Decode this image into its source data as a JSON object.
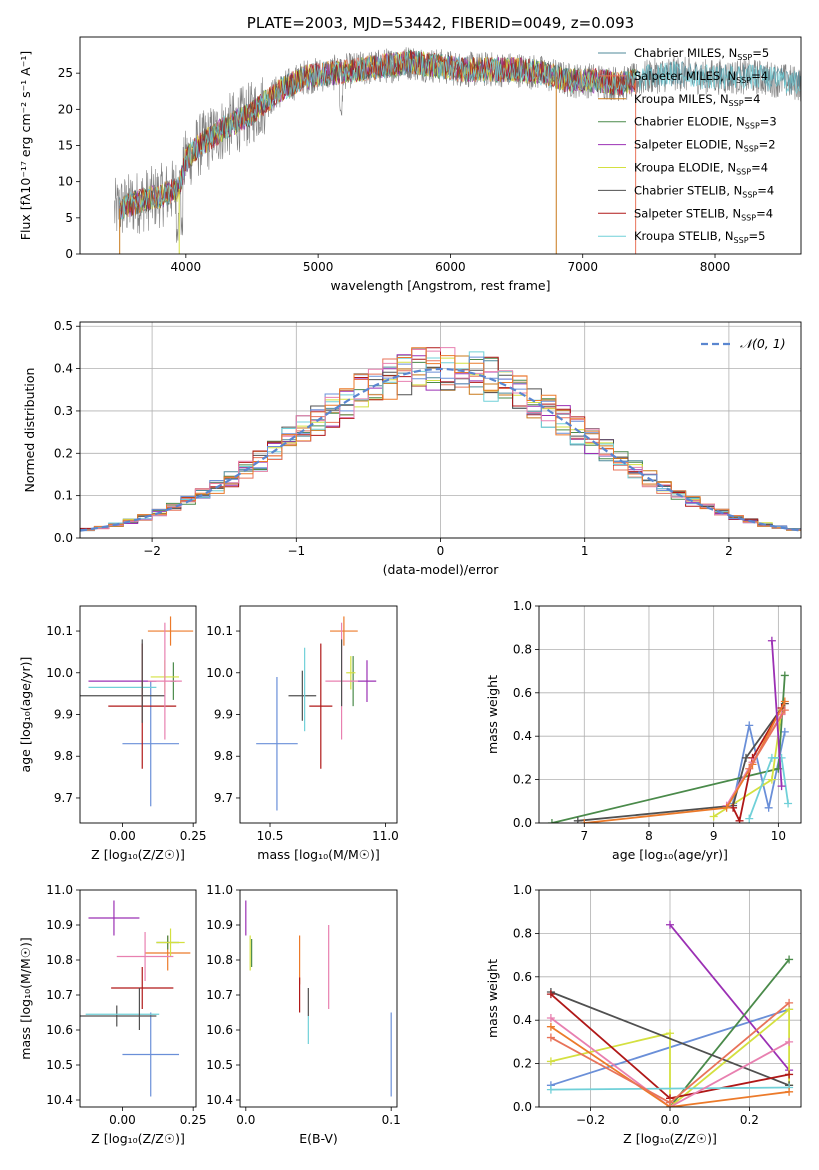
{
  "colors": {
    "Chabrier MILES": "#4f8a9a",
    "Salpeter MILES": "#e8735a",
    "Kroupa MILES": "#c8781a",
    "Chabrier ELODIE": "#4a8a4a",
    "Salpeter ELODIE": "#9b30b4",
    "Kroupa ELODIE": "#d4e040",
    "Chabrier STELIB": "#505050",
    "Salpeter STELIB": "#b01818",
    "Kroupa STELIB": "#70d0d8",
    "blue": "#6a8fd8",
    "pink": "#e880b0",
    "orange": "#ec7a2a"
  },
  "chart_data": [
    {
      "type": "line",
      "id": "spectrum",
      "title": "PLATE=2003, MJD=53442, FIBERID=0049, z=0.093",
      "xlabel": "wavelength [Angstrom, rest frame]",
      "ylabel": "Flux [fλ10⁻¹⁷ erg cm⁻² s⁻¹ A⁻¹]",
      "xlim": [
        3200,
        8650
      ],
      "ylim": [
        0,
        30
      ],
      "xticks": [
        4000,
        5000,
        6000,
        7000,
        8000
      ],
      "yticks": [
        0,
        5,
        10,
        15,
        20,
        25
      ],
      "legend_position": "upper-right",
      "continuum": {
        "x": [
          3460,
          3600,
          3800,
          3950,
          4000,
          4100,
          4300,
          4500,
          4700,
          4900,
          5100,
          5300,
          5500,
          5700,
          5900,
          6100,
          6300,
          6500,
          6700,
          6900,
          7100,
          7300,
          7500,
          7700,
          7900,
          8100,
          8300,
          8500,
          8650
        ],
        "y": [
          6,
          7,
          8,
          9,
          13,
          15,
          17.5,
          19.5,
          22.5,
          24.5,
          25,
          25.5,
          26,
          26.5,
          26,
          25.5,
          25.5,
          25.5,
          25,
          24,
          24,
          23.5,
          24.5,
          25,
          24.5,
          24.5,
          24.5,
          24,
          23.5
        ]
      },
      "legend": [
        {
          "label": "Chabrier MILES, N",
          "sub": "SSP",
          "suffix": "=5"
        },
        {
          "label": "Salpeter MILES, N",
          "sub": "SSP",
          "suffix": "=4"
        },
        {
          "label": "Kroupa MILES, N",
          "sub": "SSP",
          "suffix": "=4"
        },
        {
          "label": "Chabrier ELODIE, N",
          "sub": "SSP",
          "suffix": "=3"
        },
        {
          "label": "Salpeter ELODIE, N",
          "sub": "SSP",
          "suffix": "=2"
        },
        {
          "label": "Kroupa ELODIE, N",
          "sub": "SSP",
          "suffix": "=4"
        },
        {
          "label": "Chabrier STELIB, N",
          "sub": "SSP",
          "suffix": "=4"
        },
        {
          "label": "Salpeter STELIB, N",
          "sub": "SSP",
          "suffix": "=4"
        },
        {
          "label": "Kroupa STELIB, N",
          "sub": "SSP",
          "suffix": "=5"
        }
      ]
    },
    {
      "type": "histogram",
      "id": "residuals",
      "xlabel": "(data-model)/error",
      "ylabel": "Normed distribution",
      "xlim": [
        -2.5,
        2.5
      ],
      "ylim": [
        0,
        0.51
      ],
      "xticks": [
        -2,
        -1,
        0,
        1,
        2
      ],
      "yticks": [
        0.0,
        0.1,
        0.2,
        0.3,
        0.4,
        0.5
      ],
      "grid": true,
      "legend_label": "𝒩(0, 1)",
      "legend_position": "upper-right",
      "bin_width": 0.1
    },
    {
      "type": "errorbar",
      "id": "age-vs-Z",
      "xlabel": "Z [log₁₀(Z/Z☉)]",
      "ylabel": "age  [log₁₀(age/yr)]",
      "xlim": [
        -0.15,
        0.26
      ],
      "ylim": [
        9.64,
        10.16
      ],
      "xticks": [
        0.0,
        0.25
      ],
      "xtick_labels": [
        "0.00",
        "0.25"
      ],
      "yticks": [
        9.7,
        9.8,
        9.9,
        10.0,
        10.1
      ],
      "points": [
        {
          "c": "blue",
          "x": 0.1,
          "y": 9.83,
          "xe": 0.1,
          "ye": 0.15
        },
        {
          "c": "orange",
          "x": 0.17,
          "y": 10.1,
          "xe": 0.08,
          "ye": 0.035
        },
        {
          "c": "Chabrier ELODIE",
          "x": 0.18,
          "y": 9.98,
          "xe": 0.01,
          "ye": 0.045
        },
        {
          "c": "Salpeter ELODIE",
          "x": 0.0,
          "y": 9.98,
          "xe": 0.12,
          "ye": 0.0
        },
        {
          "c": "Kroupa ELODIE",
          "x": 0.15,
          "y": 9.99,
          "xe": 0.05,
          "ye": 0.04
        },
        {
          "c": "Chabrier STELIB",
          "x": 0.0,
          "y": 9.945,
          "xe": 0.15,
          "ye": 0.0
        },
        {
          "c": "Salpeter STELIB",
          "x": 0.07,
          "y": 9.92,
          "xe": 0.12,
          "ye": 0.15
        },
        {
          "c": "Kroupa STELIB",
          "x": 0.0,
          "y": 9.965,
          "xe": 0.12,
          "ye": 0.0
        },
        {
          "c": "pink",
          "x": 0.15,
          "y": 9.98,
          "xe": 0.06,
          "ye": 0.14
        },
        {
          "c": "Chabrier STELIB",
          "x": 0.07,
          "y": 9.98,
          "xe": 0.0,
          "ye": 0.1
        }
      ]
    },
    {
      "type": "errorbar",
      "id": "age-vs-mass",
      "xlabel": "mass [log₁₀(M/M☉)]",
      "ylabel": "",
      "xlim": [
        10.37,
        11.05
      ],
      "ylim": [
        9.64,
        10.16
      ],
      "xticks": [
        10.5,
        11.0
      ],
      "xtick_labels": [
        "10.5",
        "11.0"
      ],
      "yticks": [
        9.7,
        9.8,
        9.9,
        10.0,
        10.1
      ],
      "points": [
        {
          "c": "blue",
          "x": 10.53,
          "y": 9.83,
          "xe": 0.09,
          "ye": 0.16
        },
        {
          "c": "orange",
          "x": 10.82,
          "y": 10.1,
          "xe": 0.06,
          "ye": 0.035
        },
        {
          "c": "Chabrier ELODIE",
          "x": 10.86,
          "y": 9.98,
          "xe": 0.0,
          "ye": 0.06
        },
        {
          "c": "Salpeter ELODIE",
          "x": 10.92,
          "y": 9.98,
          "xe": 0.04,
          "ye": 0.05
        },
        {
          "c": "Kroupa ELODIE",
          "x": 10.85,
          "y": 10.0,
          "xe": 0.02,
          "ye": 0.04
        },
        {
          "c": "Chabrier STELIB",
          "x": 10.64,
          "y": 9.945,
          "xe": 0.06,
          "ye": 0.06
        },
        {
          "c": "Salpeter STELIB",
          "x": 10.72,
          "y": 9.92,
          "xe": 0.05,
          "ye": 0.15
        },
        {
          "c": "Kroupa STELIB",
          "x": 10.65,
          "y": 9.96,
          "xe": 0.0,
          "ye": 0.1
        },
        {
          "c": "pink",
          "x": 10.81,
          "y": 9.98,
          "xe": 0.07,
          "ye": 0.14
        },
        {
          "c": "Chabrier STELIB",
          "x": 10.81,
          "y": 10.0,
          "xe": 0.0,
          "ye": 0.08
        }
      ]
    },
    {
      "type": "line",
      "id": "weight-vs-age",
      "xlabel": "age  [log₁₀(age/yr)]",
      "ylabel": "mass weight",
      "xlim": [
        6.3,
        10.35
      ],
      "ylim": [
        0,
        1
      ],
      "xticks": [
        7,
        8,
        9,
        10
      ],
      "yticks": [
        0.0,
        0.2,
        0.4,
        0.6,
        0.8,
        1.0
      ],
      "grid": true,
      "series": [
        {
          "c": "blue",
          "x": [
            9.3,
            9.55,
            9.85,
            10.1
          ],
          "y": [
            0.09,
            0.45,
            0.07,
            0.42
          ]
        },
        {
          "c": "Chabrier ELODIE",
          "x": [
            6.5,
            10.0,
            10.1
          ],
          "y": [
            0.0,
            0.25,
            0.68
          ]
        },
        {
          "c": "Kroupa ELODIE",
          "x": [
            9.0,
            9.9,
            10.05
          ],
          "y": [
            0.03,
            0.2,
            0.52
          ]
        },
        {
          "c": "Chabrier STELIB",
          "x": [
            6.9,
            9.3,
            9.5,
            10.1
          ],
          "y": [
            0.01,
            0.08,
            0.3,
            0.55
          ]
        },
        {
          "c": "Salpeter STELIB",
          "x": [
            9.3,
            9.4,
            9.6,
            10.05
          ],
          "y": [
            0.07,
            0.01,
            0.3,
            0.53
          ]
        },
        {
          "c": "Kroupa STELIB",
          "x": [
            9.55,
            9.9,
            10.05,
            10.15
          ],
          "y": [
            0.02,
            0.3,
            0.3,
            0.09
          ]
        },
        {
          "c": "pink",
          "x": [
            9.2,
            9.6,
            10.05
          ],
          "y": [
            0.08,
            0.28,
            0.5
          ]
        },
        {
          "c": "orange",
          "x": [
            7.0,
            9.2,
            9.6,
            10.1
          ],
          "y": [
            0.0,
            0.07,
            0.27,
            0.56
          ]
        },
        {
          "c": "Salpeter MILES",
          "x": [
            9.55,
            10.1
          ],
          "y": [
            0.25,
            0.52
          ]
        },
        {
          "c": "Salpeter ELODIE",
          "x": [
            9.9,
            10.05
          ],
          "y": [
            0.84,
            0.17
          ]
        }
      ]
    },
    {
      "type": "errorbar",
      "id": "mass-vs-Z",
      "xlabel": "Z [log₁₀(Z/Z☉)]",
      "ylabel": "mass [log₁₀(M/M☉)]",
      "xlim": [
        -0.15,
        0.26
      ],
      "ylim": [
        10.38,
        11.0
      ],
      "xticks": [
        0.0,
        0.25
      ],
      "xtick_labels": [
        "0.00",
        "0.25"
      ],
      "yticks": [
        10.4,
        10.5,
        10.6,
        10.7,
        10.8,
        10.9,
        11.0
      ],
      "points": [
        {
          "c": "blue",
          "x": 0.1,
          "y": 10.53,
          "xe": 0.1,
          "ye": 0.12
        },
        {
          "c": "orange",
          "x": 0.16,
          "y": 10.82,
          "xe": 0.08,
          "ye": 0.05
        },
        {
          "c": "Chabrier ELODIE",
          "x": 0.16,
          "y": 10.85,
          "xe": 0.04,
          "ye": 0.02
        },
        {
          "c": "Salpeter ELODIE",
          "x": -0.03,
          "y": 10.92,
          "xe": 0.09,
          "ye": 0.05
        },
        {
          "c": "Kroupa ELODIE",
          "x": 0.17,
          "y": 10.85,
          "xe": 0.05,
          "ye": 0.04
        },
        {
          "c": "Chabrier STELIB",
          "x": -0.02,
          "y": 10.64,
          "xe": 0.14,
          "ye": 0.03
        },
        {
          "c": "Salpeter STELIB",
          "x": 0.07,
          "y": 10.72,
          "xe": 0.11,
          "ye": 0.06
        },
        {
          "c": "Kroupa STELIB",
          "x": 0.0,
          "y": 10.645,
          "xe": 0.13,
          "ye": 0.0
        },
        {
          "c": "pink",
          "x": 0.08,
          "y": 10.81,
          "xe": 0.1,
          "ye": 0.07
        },
        {
          "c": "Chabrier STELIB",
          "x": 0.06,
          "y": 10.66,
          "xe": 0.0,
          "ye": 0.06
        }
      ]
    },
    {
      "type": "errorbar",
      "id": "mass-vs-ebv",
      "xlabel": "E(B-V)",
      "ylabel": "",
      "xlim": [
        -0.004,
        0.104
      ],
      "ylim": [
        10.38,
        11.0
      ],
      "xticks": [
        0.0,
        0.1
      ],
      "xtick_labels": [
        "0.0",
        "0.1"
      ],
      "yticks": [
        10.4,
        10.5,
        10.6,
        10.7,
        10.8,
        10.9,
        11.0
      ],
      "points": [
        {
          "c": "blue",
          "x": 0.1,
          "y": 10.53,
          "xe": 0.0,
          "ye": 0.12
        },
        {
          "c": "orange",
          "x": 0.037,
          "y": 10.8,
          "xe": 0.0,
          "ye": 0.07
        },
        {
          "c": "Chabrier ELODIE",
          "x": 0.004,
          "y": 10.82,
          "xe": 0.0,
          "ye": 0.04
        },
        {
          "c": "Salpeter ELODIE",
          "x": 0.0,
          "y": 10.92,
          "xe": 0.0,
          "ye": 0.05
        },
        {
          "c": "Kroupa ELODIE",
          "x": 0.003,
          "y": 10.82,
          "xe": 0.0,
          "ye": 0.05
        },
        {
          "c": "Chabrier STELIB",
          "x": 0.043,
          "y": 10.68,
          "xe": 0.0,
          "ye": 0.04
        },
        {
          "c": "Salpeter STELIB",
          "x": 0.037,
          "y": 10.7,
          "xe": 0.0,
          "ye": 0.05
        },
        {
          "c": "Kroupa STELIB",
          "x": 0.043,
          "y": 10.6,
          "xe": 0.0,
          "ye": 0.04
        },
        {
          "c": "pink",
          "x": 0.057,
          "y": 10.78,
          "xe": 0.0,
          "ye": 0.12
        }
      ]
    },
    {
      "type": "line",
      "id": "weight-vs-Z",
      "xlabel": "Z [log₁₀(Z/Z☉)]",
      "ylabel": "mass weight",
      "xlim": [
        -0.33,
        0.33
      ],
      "ylim": [
        0,
        1
      ],
      "xticks": [
        -0.2,
        0.0,
        0.2
      ],
      "xtick_labels": [
        "−0.2",
        "0.0",
        "0.2"
      ],
      "yticks": [
        0.0,
        0.2,
        0.4,
        0.6,
        0.8,
        1.0
      ],
      "grid": true,
      "series": [
        {
          "c": "blue",
          "x": [
            -0.3,
            0.3
          ],
          "y": [
            0.1,
            0.45
          ]
        },
        {
          "c": "Salpeter ELODIE",
          "x": [
            0.0,
            0.3
          ],
          "y": [
            0.84,
            0.17
          ]
        },
        {
          "c": "Chabrier ELODIE",
          "x": [
            0.0,
            0.3
          ],
          "y": [
            0.0,
            0.68
          ]
        },
        {
          "c": "Kroupa ELODIE",
          "x": [
            -0.3,
            0.0,
            0.0,
            0.3,
            0.3
          ],
          "y": [
            0.21,
            0.34,
            0.0,
            0.45,
            0.1
          ]
        },
        {
          "c": "Chabrier STELIB",
          "x": [
            -0.3,
            0.3
          ],
          "y": [
            0.53,
            0.1
          ]
        },
        {
          "c": "Salpeter STELIB",
          "x": [
            -0.3,
            0.0,
            0.3
          ],
          "y": [
            0.52,
            0.04,
            0.15
          ]
        },
        {
          "c": "Kroupa STELIB",
          "x": [
            -0.3,
            0.3
          ],
          "y": [
            0.08,
            0.09
          ]
        },
        {
          "c": "pink",
          "x": [
            -0.3,
            0.0,
            0.3
          ],
          "y": [
            0.41,
            0.0,
            0.3
          ]
        },
        {
          "c": "orange",
          "x": [
            -0.3,
            0.0,
            0.3
          ],
          "y": [
            0.37,
            0.0,
            0.07
          ]
        },
        {
          "c": "Salpeter MILES",
          "x": [
            -0.3,
            0.0,
            0.3
          ],
          "y": [
            0.32,
            0.02,
            0.48
          ]
        }
      ]
    }
  ]
}
